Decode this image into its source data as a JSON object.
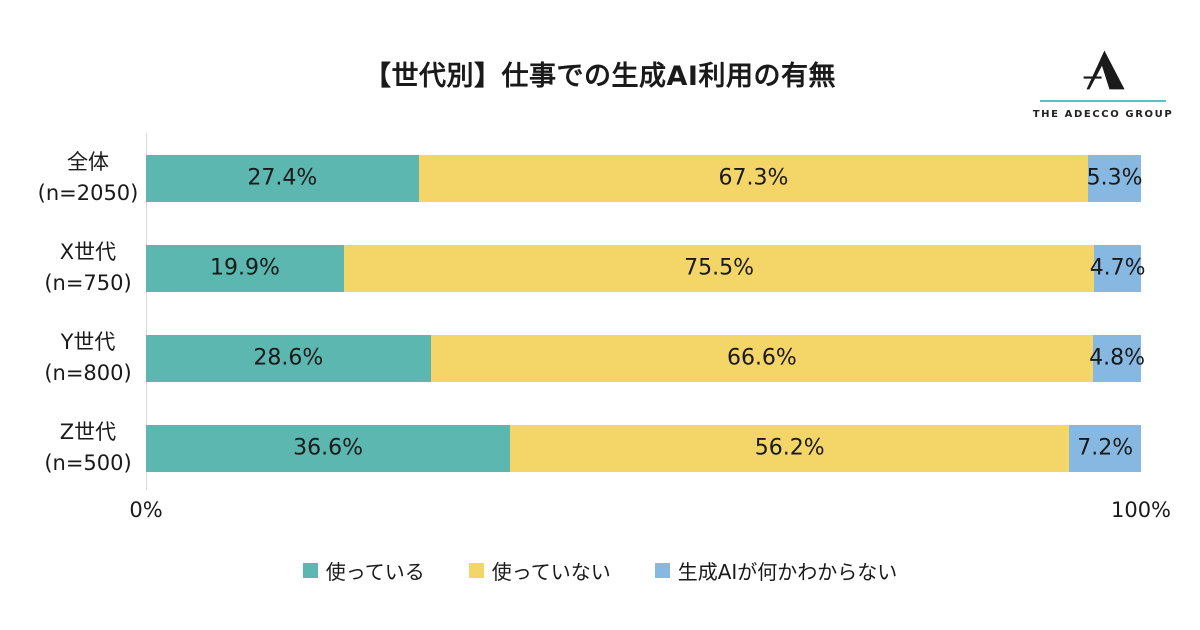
{
  "title": "【世代別】仕事での生成AI利用の有無",
  "logo": {
    "name": "THE ADECCO GROUP",
    "mark_color": "#1a1a1a",
    "line_color": "#52c5c4"
  },
  "legend": [
    {
      "label": "使っている",
      "color": "#5bb7af"
    },
    {
      "label": "使っていない",
      "color": "#f4d567"
    },
    {
      "label": "生成AIが何かわからない",
      "color": "#87b8e2"
    }
  ],
  "chart_data": {
    "type": "bar",
    "orientation": "horizontal",
    "stacked": true,
    "title": "【世代別】仕事での生成AI利用の有無",
    "categories": [
      [
        "全体",
        "(n=2050)"
      ],
      [
        "X世代",
        "(n=750)"
      ],
      [
        "Y世代",
        "(n=800)"
      ],
      [
        "Z世代",
        "(n=500)"
      ]
    ],
    "series": [
      {
        "name": "使っている",
        "color": "#5bb7af",
        "values": [
          27.4,
          19.9,
          28.6,
          36.6
        ]
      },
      {
        "name": "使っていない",
        "color": "#f4d567",
        "values": [
          67.3,
          75.5,
          66.6,
          56.2
        ]
      },
      {
        "name": "生成AIが何かわからない",
        "color": "#87b8e2",
        "values": [
          5.3,
          4.7,
          4.8,
          7.2
        ]
      }
    ],
    "xlim": [
      0,
      100
    ],
    "x_min_label": "0%",
    "x_max_label": "100%",
    "value_suffix": "%",
    "grid": false,
    "legend_position": "bottom"
  }
}
